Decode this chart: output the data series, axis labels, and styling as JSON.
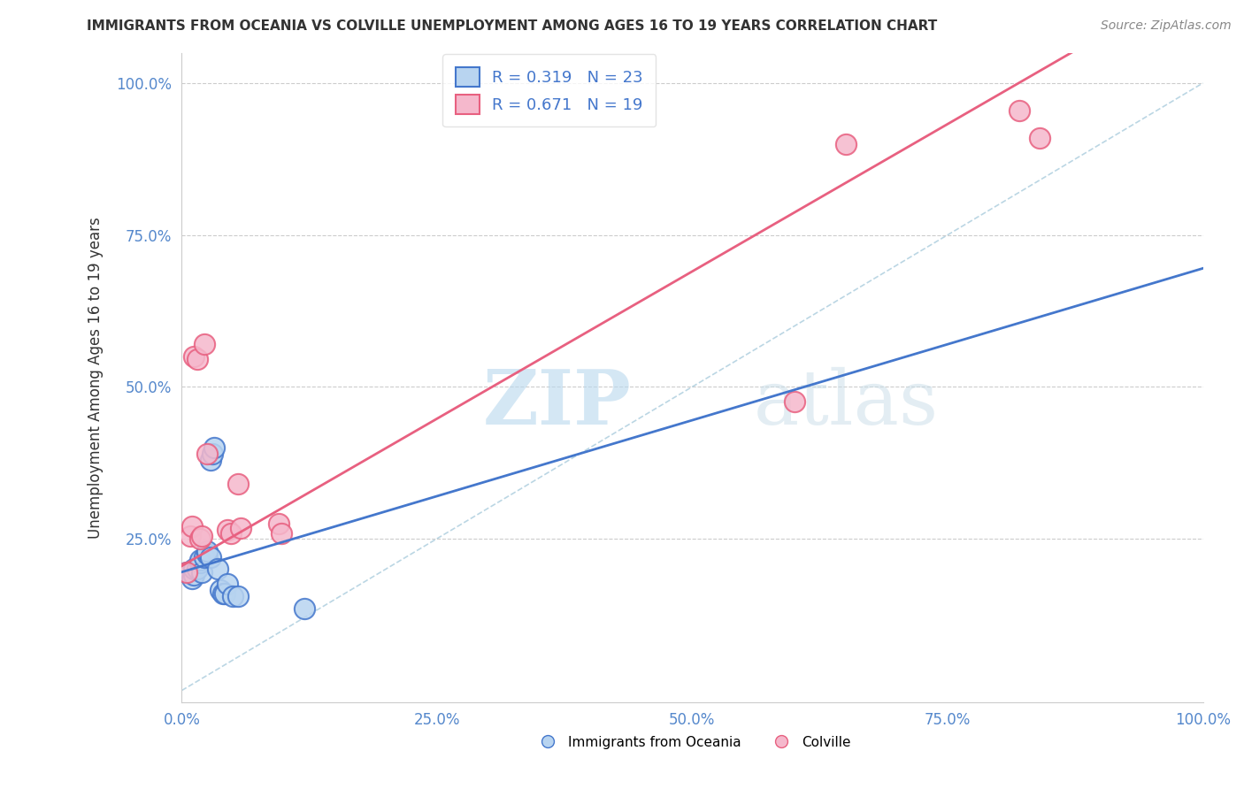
{
  "title": "IMMIGRANTS FROM OCEANIA VS COLVILLE UNEMPLOYMENT AMONG AGES 16 TO 19 YEARS CORRELATION CHART",
  "source": "Source: ZipAtlas.com",
  "ylabel": "Unemployment Among Ages 16 to 19 years",
  "xlim": [
    0,
    1.0
  ],
  "ylim": [
    -0.02,
    1.05
  ],
  "xtick_labels": [
    "0.0%",
    "25.0%",
    "50.0%",
    "75.0%",
    "100.0%"
  ],
  "xtick_vals": [
    0.0,
    0.25,
    0.5,
    0.75,
    1.0
  ],
  "ytick_labels": [
    "25.0%",
    "50.0%",
    "75.0%",
    "100.0%"
  ],
  "ytick_vals": [
    0.25,
    0.5,
    0.75,
    1.0
  ],
  "blue_label": "Immigrants from Oceania",
  "pink_label": "Colville",
  "blue_R": "R = 0.319",
  "blue_N": "N = 23",
  "pink_R": "R = 0.671",
  "pink_N": "N = 19",
  "blue_color": "#b8d4f0",
  "pink_color": "#f5b8cc",
  "blue_line_color": "#4477cc",
  "pink_line_color": "#e86080",
  "watermark_zip": "ZIP",
  "watermark_atlas": "atlas",
  "blue_scatter_x": [
    0.005,
    0.01,
    0.012,
    0.012,
    0.015,
    0.018,
    0.018,
    0.02,
    0.022,
    0.025,
    0.025,
    0.028,
    0.028,
    0.03,
    0.032,
    0.035,
    0.038,
    0.04,
    0.042,
    0.045,
    0.05,
    0.055,
    0.12
  ],
  "blue_scatter_y": [
    0.195,
    0.185,
    0.19,
    0.2,
    0.2,
    0.21,
    0.215,
    0.195,
    0.22,
    0.225,
    0.23,
    0.22,
    0.38,
    0.39,
    0.4,
    0.2,
    0.165,
    0.16,
    0.16,
    0.175,
    0.155,
    0.155,
    0.135
  ],
  "pink_scatter_x": [
    0.005,
    0.008,
    0.01,
    0.012,
    0.015,
    0.018,
    0.02,
    0.022,
    0.025,
    0.045,
    0.048,
    0.055,
    0.058,
    0.095,
    0.098,
    0.6,
    0.65,
    0.82,
    0.84
  ],
  "pink_scatter_y": [
    0.195,
    0.255,
    0.27,
    0.55,
    0.545,
    0.25,
    0.255,
    0.57,
    0.39,
    0.265,
    0.258,
    0.34,
    0.268,
    0.275,
    0.258,
    0.475,
    0.9,
    0.955,
    0.91
  ],
  "blue_line_intercept": 0.195,
  "blue_line_slope": 0.5,
  "pink_line_intercept": 0.205,
  "pink_line_slope": 0.97,
  "dashed_line_x": [
    0.0,
    1.0
  ],
  "dashed_line_y": [
    0.0,
    1.0
  ],
  "grid_color": "#cccccc",
  "tick_color": "#5588cc",
  "title_color": "#333333",
  "source_color": "#888888"
}
